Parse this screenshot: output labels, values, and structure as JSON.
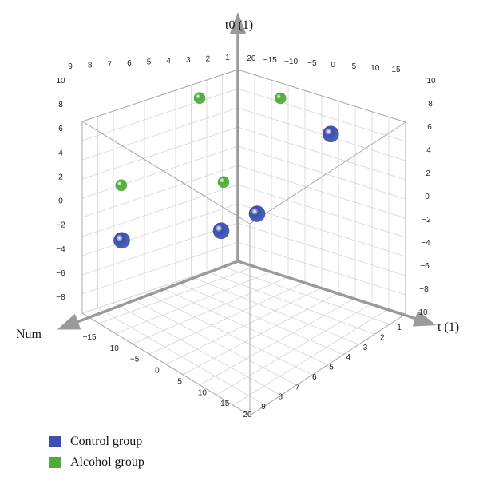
{
  "chart_data": {
    "type": "scatter",
    "title": "",
    "axes": {
      "vertical": {
        "label": "t0 (1)",
        "range": [
          -10,
          10
        ],
        "ticks_left": [
          "10",
          "8",
          "6",
          "4",
          "2",
          "0",
          "−2",
          "−4",
          "−6",
          "−8"
        ],
        "ticks_right": [
          "10",
          "8",
          "6",
          "4",
          "2",
          "0",
          "−2",
          "−4",
          "−6",
          "−8",
          "10"
        ]
      },
      "left": {
        "label": "Num",
        "range": [
          -20,
          20
        ],
        "ticks_front": [
          "−15",
          "−10",
          "−5",
          "0",
          "5",
          "10",
          "15",
          "20"
        ],
        "ticks_back": [
          "−20",
          "−15",
          "−10",
          "−5",
          "0",
          "5",
          "10",
          "15"
        ]
      },
      "right": {
        "label": "t (1)",
        "range": [
          0,
          10
        ],
        "ticks_front": [
          "1",
          "2",
          "3",
          "4",
          "5",
          "6",
          "7",
          "8",
          "9"
        ],
        "ticks_back": [
          "9",
          "8",
          "7",
          "6",
          "5",
          "4",
          "3",
          "2",
          "1"
        ]
      }
    },
    "grid": true,
    "legend_position": "bottom-left",
    "series": [
      {
        "name": "Control group",
        "color": "#3a4fb0",
        "points": [
          {
            "t": 6.0,
            "num": -18,
            "t0": 7
          },
          {
            "t": 5.5,
            "num": 8,
            "t0": 2
          },
          {
            "t": 3.0,
            "num": -12,
            "t0": -2
          },
          {
            "t": 0.5,
            "num": 12,
            "t0": -3
          }
        ]
      },
      {
        "name": "Alcohol group",
        "color": "#4fac3a",
        "points": [
          {
            "t": 3.0,
            "num": -18,
            "t0": 9
          },
          {
            "t": 0.5,
            "num": -8,
            "t0": 9
          },
          {
            "t": 1.0,
            "num": -12,
            "t0": 0
          },
          {
            "t": 0.0,
            "num": 10,
            "t0": 2
          }
        ]
      }
    ]
  },
  "legend": {
    "items": [
      {
        "label": "Control group",
        "color": "#3a4fb0"
      },
      {
        "label": "Alcohol group",
        "color": "#4fac3a"
      }
    ]
  }
}
